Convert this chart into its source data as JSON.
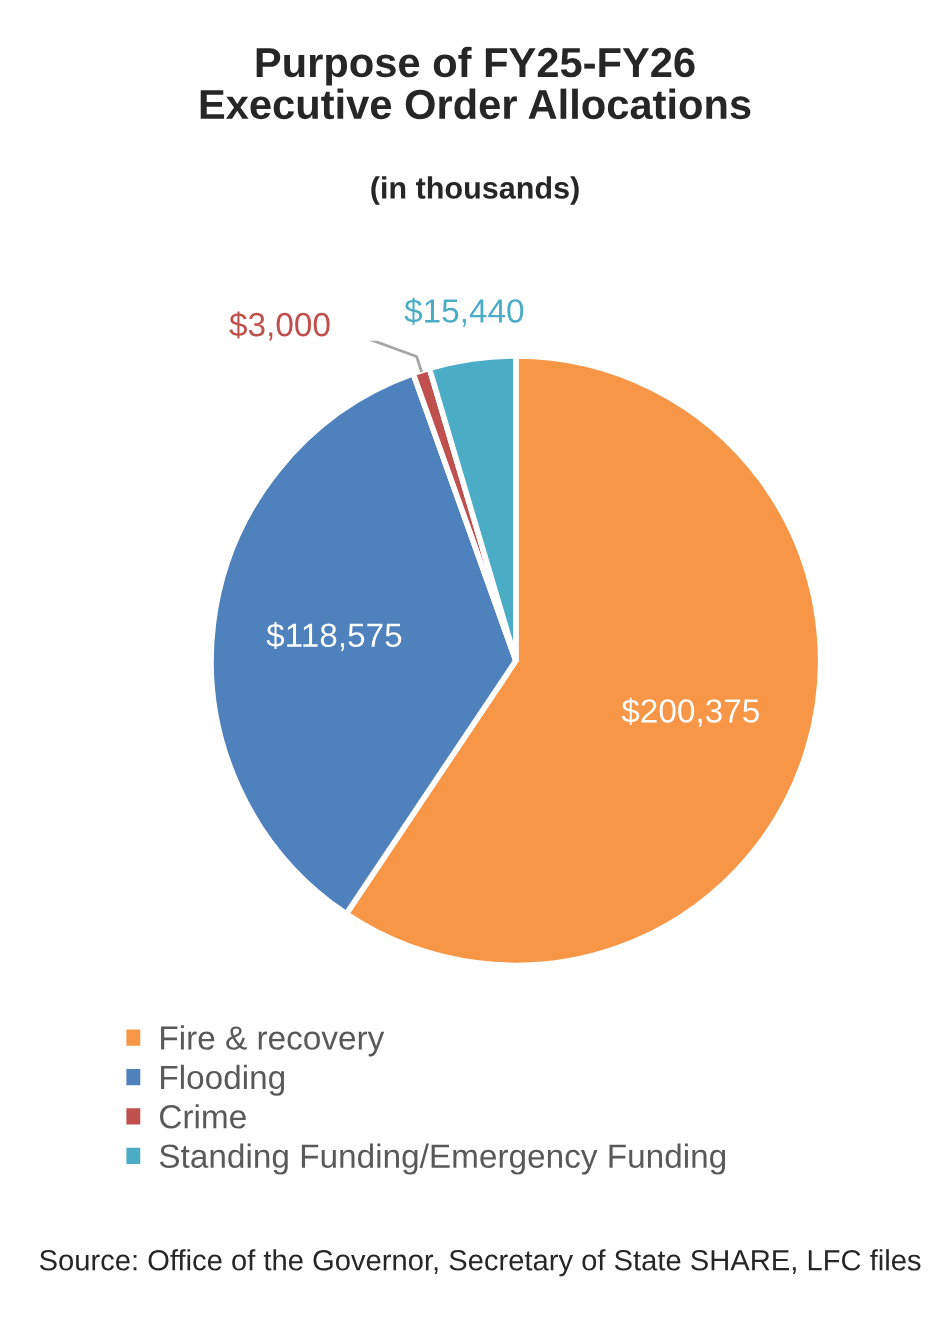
{
  "chart_data": {
    "type": "pie",
    "title": "Purpose of FY25-FY26\nExecutive Order Allocations",
    "subtitle": "(in thousands)",
    "categories": [
      "Fire & recovery",
      "Flooding",
      "Crime",
      "Standing Funding/Emergency Funding"
    ],
    "values": [
      200375,
      118575,
      3000,
      15440
    ],
    "colors": [
      "#f79646",
      "#4f81bd",
      "#c0504d",
      "#4bacc6"
    ],
    "value_labels": [
      "$200,375",
      "$118,575",
      "$3,000",
      "$15,440"
    ],
    "legend": "bottom",
    "annotations": [
      "Source: Office of the Governor, Secretary of State SHARE, LFC files"
    ]
  }
}
